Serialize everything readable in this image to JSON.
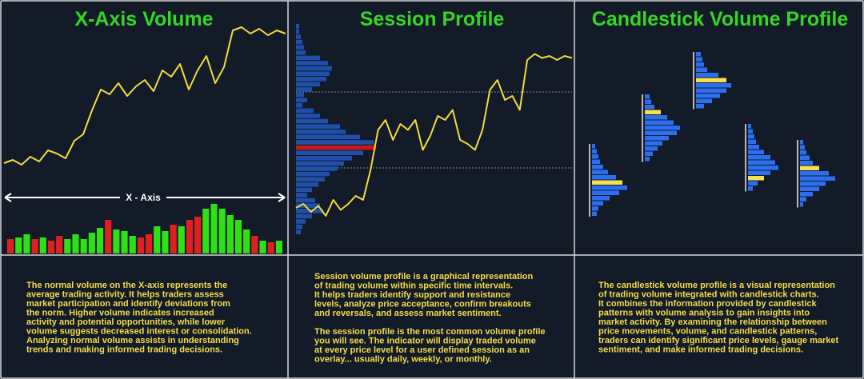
{
  "panels": [
    {
      "title": "X-Axis Volume",
      "axis_label": "X - Axis",
      "price": [
        12,
        14,
        11,
        16,
        13,
        20,
        18,
        15,
        26,
        30,
        45,
        58,
        55,
        62,
        54,
        60,
        64,
        57,
        70,
        66,
        74,
        58,
        70,
        79,
        62,
        72,
        95,
        97,
        93,
        96,
        92,
        95,
        93
      ],
      "price_color": "#f2dc3c",
      "volume": [
        18,
        20,
        24,
        18,
        20,
        16,
        22,
        18,
        24,
        18,
        26,
        32,
        42,
        30,
        28,
        22,
        20,
        24,
        34,
        28,
        36,
        34,
        42,
        46,
        56,
        62,
        56,
        48,
        42,
        30,
        22,
        16,
        14,
        16
      ],
      "volume_colors": [
        "#e02020",
        "#2ee016",
        "#2ee016",
        "#e02020",
        "#2ee016",
        "#e02020",
        "#e02020",
        "#2ee016",
        "#2ee016",
        "#2ee016",
        "#2ee016",
        "#2ee016",
        "#e02020",
        "#2ee016",
        "#2ee016",
        "#2ee016",
        "#e02020",
        "#e02020",
        "#2ee016",
        "#2ee016",
        "#e02020",
        "#2ee016",
        "#e02020",
        "#e02020",
        "#2ee016",
        "#2ee016",
        "#2ee016",
        "#2ee016",
        "#2ee016",
        "#2ee016",
        "#e02020",
        "#2ee016",
        "#e02020",
        "#2ee016"
      ],
      "paragraphs": [
        [
          "The normal volume on the X-axis represents the",
          "average trading activity. It helps traders assess",
          "market participation and identify deviations from",
          "the norm. Higher volume indicates increased",
          "activity and potential opportunities, while lower",
          "volume suggests decreased interest or consolidation.",
          "Analyzing normal volume assists in understanding",
          "trends and making informed trading decisions."
        ]
      ]
    },
    {
      "title": "Session Profile",
      "price": [
        16,
        18,
        14,
        17,
        12,
        20,
        15,
        18,
        22,
        20,
        35,
        55,
        60,
        50,
        58,
        55,
        60,
        45,
        52,
        62,
        60,
        65,
        50,
        48,
        45,
        55,
        75,
        80,
        70,
        72,
        65,
        90,
        93,
        91,
        92,
        90,
        92,
        91
      ],
      "price_color": "#f2dc3c",
      "profile": [
        4,
        4,
        6,
        8,
        10,
        12,
        30,
        40,
        45,
        42,
        38,
        30,
        20,
        10,
        14,
        8,
        22,
        30,
        40,
        55,
        62,
        80,
        97,
        100,
        84,
        70,
        60,
        52,
        42,
        36,
        28,
        20,
        14,
        24,
        30,
        34,
        20,
        12,
        8,
        6
      ],
      "profile_color": "#1f4fa8",
      "highlight_row": 23,
      "highlight_color": "#c41a1a",
      "paragraphs": [
        [
          "Session volume profile is a graphical representation",
          "of trading volume within specific time intervals.",
          "It helps traders identify support and resistance",
          "levels, analyze price acceptance, confirm breakouts",
          " and reversals, and assess market sentiment."
        ],
        [
          "The session profile is the most common volume profile",
          "you will see. The indicator will display traded volume",
          "at every price level for a user defined session as an",
          "overlay... usually daily, weekly, or monthly."
        ]
      ]
    },
    {
      "title": "Candlestick Volume Profile",
      "clusters": [
        {
          "rows": [
            4,
            6,
            8,
            10,
            14,
            20,
            30,
            38,
            44,
            34,
            22,
            14,
            8,
            6
          ],
          "highlight_row": 7
        },
        {
          "rows": [
            6,
            8,
            12,
            20,
            28,
            36,
            44,
            40,
            30,
            22,
            16,
            10,
            6
          ],
          "highlight_row": 3
        },
        {
          "rows": [
            6,
            8,
            10,
            14,
            28,
            38,
            44,
            38,
            30,
            20,
            10
          ],
          "highlight_row": 5
        },
        {
          "rows": [
            4,
            6,
            8,
            10,
            14,
            20,
            28,
            34,
            38,
            28,
            20,
            12,
            6
          ],
          "highlight_row": 10
        },
        {
          "rows": [
            4,
            6,
            8,
            12,
            16,
            24,
            36,
            44,
            32,
            24,
            16,
            8,
            4
          ],
          "highlight_row": 5
        }
      ],
      "bar_color": "#2b6ff0",
      "highlight_color": "#f5e050",
      "paragraphs": [
        [
          "The candlestick volume profile is a visual representation",
          "of trading volume integrated with candlestick charts.",
          "It combines the information provided by candlestick",
          "patterns with volume analysis to gain insights into",
          "market activity. By examining the relationship between",
          "price movements, volume, and candlestick patterns,",
          "traders can identify significant price levels, gauge market",
          "sentiment, and make informed trading decisions."
        ]
      ]
    }
  ]
}
